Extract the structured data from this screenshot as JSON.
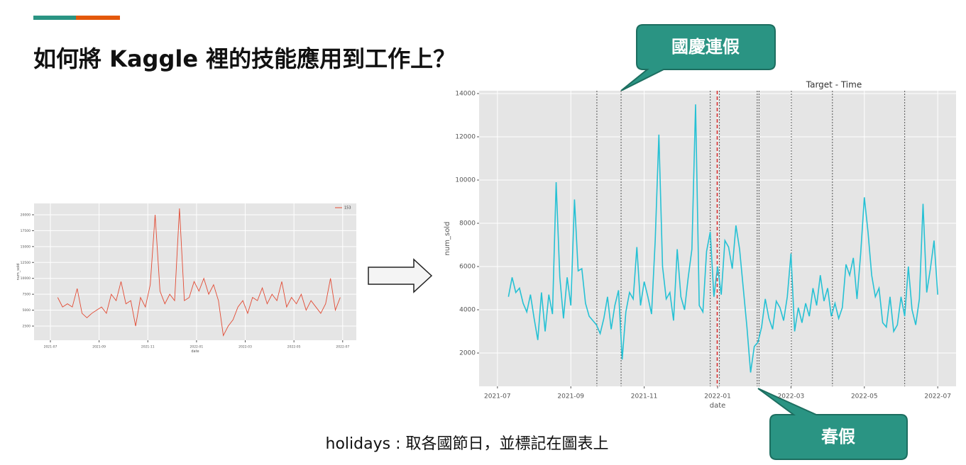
{
  "slide": {
    "title": "如何將 Kaggle 裡的技能應用到工作上？",
    "callouts": [
      "國慶連假",
      "春假"
    ],
    "caption": "holidays : 取各國節日，並標記在圖表上"
  },
  "chart_data": [
    {
      "type": "line",
      "xlabel": "date",
      "ylabel": "num_sold",
      "legend": "upper right",
      "grid": true,
      "xlim": [
        -0.67,
        12.56
      ],
      "ylim": [
        270,
        21780
      ],
      "xticks": [
        {
          "value": 0,
          "label": "2021-07"
        },
        {
          "value": 2,
          "label": "2021-09"
        },
        {
          "value": 4,
          "label": "2021-11"
        },
        {
          "value": 6,
          "label": "2022-01"
        },
        {
          "value": 8,
          "label": "2022-03"
        },
        {
          "value": 10,
          "label": "2022-05"
        },
        {
          "value": 12,
          "label": "2022-07"
        }
      ],
      "yticks": [
        2500,
        5000,
        7500,
        10000,
        12500,
        15000,
        17500,
        20000
      ],
      "x": [
        0.3,
        0.5,
        0.7,
        0.9,
        1.1,
        1.3,
        1.5,
        1.7,
        1.9,
        2.1,
        2.3,
        2.5,
        2.7,
        2.9,
        3.1,
        3.3,
        3.5,
        3.7,
        3.9,
        4.1,
        4.3,
        4.5,
        4.7,
        4.9,
        5.1,
        5.3,
        5.5,
        5.7,
        5.9,
        6.1,
        6.3,
        6.5,
        6.7,
        6.9,
        7.1,
        7.3,
        7.5,
        7.7,
        7.9,
        8.1,
        8.3,
        8.5,
        8.7,
        8.9,
        9.1,
        9.3,
        9.5,
        9.7,
        9.9,
        10.1,
        10.3,
        10.5,
        10.7,
        10.9,
        11.1,
        11.3,
        11.5,
        11.7,
        11.9
      ],
      "series": [
        {
          "name": "153",
          "color": "#e24a33",
          "values": [
            7000,
            5500,
            6000,
            5500,
            8400,
            4500,
            3800,
            4500,
            5000,
            5500,
            4500,
            7500,
            6500,
            9500,
            6000,
            6500,
            2500,
            7000,
            5500,
            9000,
            20000,
            8000,
            6000,
            7500,
            6500,
            21000,
            6500,
            7000,
            9500,
            8000,
            10000,
            7500,
            9000,
            6500,
            1000,
            2500,
            3500,
            5500,
            6500,
            4500,
            7000,
            6500,
            8500,
            6000,
            7500,
            6500,
            9500,
            5500,
            7000,
            6000,
            7500,
            5000,
            6500,
            5500,
            4500,
            6000,
            10000,
            5000,
            7000
          ]
        }
      ]
    },
    {
      "type": "line",
      "title": "Target - Time",
      "xlabel": "date",
      "ylabel": "num_sold",
      "grid": true,
      "xlim": [
        -0.5,
        12.5
      ],
      "ylim": [
        460,
        14130
      ],
      "xticks": [
        {
          "value": 0,
          "label": "2021-07"
        },
        {
          "value": 2,
          "label": "2021-09"
        },
        {
          "value": 4,
          "label": "2021-11"
        },
        {
          "value": 6,
          "label": "2022-01"
        },
        {
          "value": 8,
          "label": "2022-03"
        },
        {
          "value": 10,
          "label": "2022-05"
        },
        {
          "value": 12,
          "label": "2022-07"
        }
      ],
      "yticks": [
        2000,
        4000,
        6000,
        8000,
        10000,
        12000,
        14000
      ],
      "holidays": [
        2.71,
        3.37,
        5.8,
        6.05,
        7.08,
        7.13,
        8.01,
        9.13,
        11.1
      ],
      "holiday_color": "#555555",
      "highlight": [
        5.99
      ],
      "highlight_color": "#d62728",
      "x": [
        0.3,
        0.4,
        0.5,
        0.6,
        0.7,
        0.8,
        0.9,
        1.0,
        1.1,
        1.2,
        1.3,
        1.4,
        1.5,
        1.6,
        1.7,
        1.8,
        1.9,
        2.0,
        2.1,
        2.2,
        2.3,
        2.4,
        2.5,
        2.6,
        2.7,
        2.8,
        2.9,
        3.0,
        3.1,
        3.2,
        3.3,
        3.4,
        3.5,
        3.6,
        3.7,
        3.8,
        3.9,
        4.0,
        4.1,
        4.2,
        4.3,
        4.4,
        4.5,
        4.6,
        4.7,
        4.8,
        4.9,
        5.0,
        5.1,
        5.2,
        5.3,
        5.4,
        5.5,
        5.6,
        5.7,
        5.8,
        5.9,
        6.0,
        6.1,
        6.2,
        6.3,
        6.4,
        6.5,
        6.6,
        6.7,
        6.8,
        6.9,
        7.0,
        7.1,
        7.2,
        7.3,
        7.4,
        7.5,
        7.6,
        7.7,
        7.8,
        7.9,
        8.0,
        8.1,
        8.2,
        8.3,
        8.4,
        8.5,
        8.6,
        8.7,
        8.8,
        8.9,
        9.0,
        9.1,
        9.2,
        9.3,
        9.4,
        9.5,
        9.6,
        9.7,
        9.8,
        9.9,
        10.0,
        10.1,
        10.2,
        10.3,
        10.4,
        10.5,
        10.6,
        10.7,
        10.8,
        10.9,
        11.0,
        11.1,
        11.2,
        11.3,
        11.4,
        11.5,
        11.6,
        11.7,
        11.8,
        11.9,
        12.0
      ],
      "series": [
        {
          "name": "num_sold",
          "color": "#26c1d4",
          "values": [
            4600,
            5500,
            4800,
            5000,
            4300,
            3900,
            4700,
            3600,
            2600,
            4800,
            3000,
            4700,
            3800,
            9900,
            5500,
            3600,
            5500,
            4200,
            9100,
            5800,
            5900,
            4300,
            3700,
            3500,
            3300,
            2900,
            3600,
            4600,
            3100,
            4200,
            4900,
            1700,
            3900,
            4800,
            4500,
            6900,
            4200,
            5300,
            4600,
            3800,
            7200,
            12100,
            6000,
            4500,
            4800,
            3500,
            6800,
            4600,
            4000,
            5500,
            6800,
            13500,
            4200,
            3900,
            6700,
            7600,
            4600,
            6000,
            4700,
            7200,
            6900,
            5900,
            7900,
            6800,
            5000,
            3200,
            1100,
            2300,
            2500,
            3200,
            4500,
            3600,
            3100,
            4400,
            4100,
            3500,
            4600,
            6600,
            3000,
            4100,
            3400,
            4300,
            3700,
            5000,
            4200,
            5600,
            4400,
            5000,
            3700,
            4300,
            3600,
            4100,
            6100,
            5600,
            6400,
            4500,
            6600,
            9200,
            7600,
            5600,
            4600,
            5000,
            3400,
            3200,
            4600,
            3000,
            3300,
            4600,
            3700,
            6000,
            4000,
            3300,
            4500,
            8900,
            4800,
            5900,
            7200,
            4700
          ]
        }
      ]
    }
  ]
}
